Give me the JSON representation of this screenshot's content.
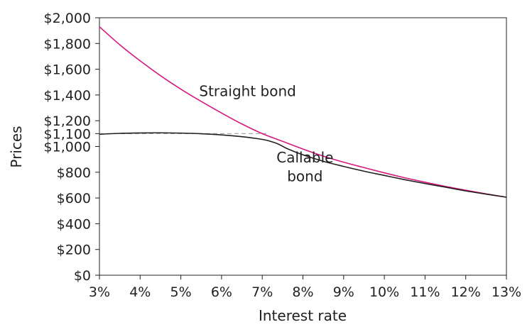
{
  "chart_data": {
    "type": "line",
    "title": "",
    "xlabel": "Interest rate",
    "ylabel": "Prices",
    "xlim": [
      3,
      13
    ],
    "ylim": [
      0,
      2000
    ],
    "x_ticks": [
      3,
      4,
      5,
      6,
      7,
      8,
      9,
      10,
      11,
      12,
      13
    ],
    "x_tick_labels": [
      "3%",
      "4%",
      "5%",
      "6%",
      "7%",
      "8%",
      "9%",
      "10%",
      "11%",
      "12%",
      "13%"
    ],
    "y_ticks": [
      0,
      200,
      400,
      600,
      800,
      1000,
      1100,
      1200,
      1400,
      1600,
      1800,
      2000
    ],
    "y_tick_labels": [
      "$0",
      "$200",
      "$400",
      "$600",
      "$800",
      "$1,000",
      "$1,100",
      "$1,200",
      "$1,400",
      "$1,600",
      "$1,800",
      "$2,000"
    ],
    "grid": false,
    "series": [
      {
        "name": "Straight bond",
        "color": "#d6187f",
        "x": [
          3,
          3.5,
          4,
          4.5,
          5,
          5.5,
          6,
          6.5,
          7,
          7.5,
          8,
          8.5,
          9,
          9.5,
          10,
          10.5,
          11,
          11.5,
          12,
          12.5,
          13
        ],
        "y": [
          1930,
          1790,
          1665,
          1550,
          1445,
          1350,
          1260,
          1175,
          1100,
          1040,
          980,
          925,
          878,
          836,
          795,
          757,
          722,
          690,
          660,
          632,
          606
        ]
      },
      {
        "name": "Callable bond",
        "color": "#231f20",
        "x": [
          3,
          3.5,
          4,
          4.5,
          5,
          5.5,
          6,
          6.5,
          7,
          7.2,
          7.4,
          7.6,
          8,
          8.5,
          9,
          9.5,
          10,
          10.5,
          11,
          11.5,
          12,
          12.5,
          13
        ],
        "y": [
          1095,
          1102,
          1105,
          1106,
          1104,
          1099,
          1090,
          1076,
          1055,
          1040,
          1018,
          985,
          935,
          885,
          845,
          808,
          775,
          742,
          712,
          684,
          655,
          630,
          606
        ]
      }
    ],
    "reference_line": {
      "y": 1100,
      "x_range": [
        3,
        7.1
      ],
      "style": "dashed",
      "color": "#a7a9ac"
    },
    "annotations": [
      {
        "text": "Straight bond",
        "x": 7.2,
        "y": 1390
      },
      {
        "text": "Callable",
        "x": 7.3,
        "y": 875
      },
      {
        "text": "bond",
        "x": 7.3,
        "y": 730
      }
    ]
  }
}
